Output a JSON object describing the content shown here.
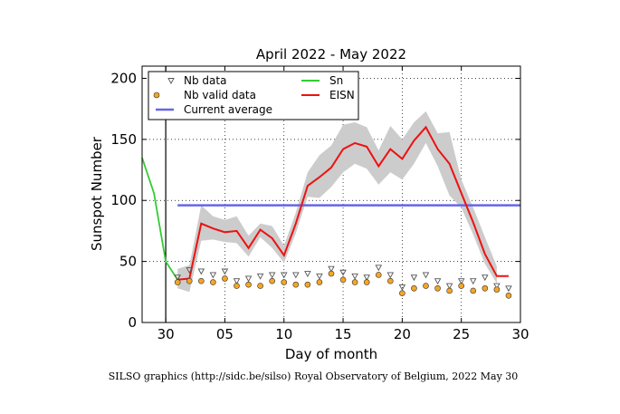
{
  "chart_data": {
    "type": "line",
    "title": "April 2022 - May 2022",
    "xlabel": "Day of month",
    "ylabel": "Sunspot Number",
    "footer": "SILSO graphics (http://sidc.be/silso) Royal Observatory of Belgium, 2022 May 30",
    "xlim": [
      -2,
      30
    ],
    "ylim": [
      0,
      210
    ],
    "x_ticks": [
      {
        "value": 0,
        "label": "30"
      },
      {
        "value": 5,
        "label": "05"
      },
      {
        "value": 10,
        "label": "10"
      },
      {
        "value": 15,
        "label": "15"
      },
      {
        "value": 20,
        "label": "20"
      },
      {
        "value": 25,
        "label": "25"
      },
      {
        "value": 30,
        "label": "30"
      }
    ],
    "y_ticks": [
      0,
      50,
      100,
      150,
      200
    ],
    "grid": true,
    "vertical_marker_x": 0,
    "legend": {
      "placement": "top-left",
      "entries": [
        {
          "label": "Nb data",
          "kind": "triangle",
          "color": "#555555"
        },
        {
          "label": "Nb valid data",
          "kind": "dot",
          "color": "#f5a623"
        },
        {
          "label": "Current average",
          "kind": "line",
          "color": "#6666e6"
        },
        {
          "label": "Sn",
          "kind": "line",
          "color": "#33cc33"
        },
        {
          "label": "EISN",
          "kind": "line",
          "color": "#ee1111"
        }
      ]
    },
    "colors": {
      "sn": "#33cc33",
      "eisn": "#ee1111",
      "band": "#cccccc",
      "average": "#6666e6",
      "dot": "#f5a623",
      "triangle": "#555555",
      "grid": "#000000"
    },
    "series": [
      {
        "name": "Sn",
        "x": [
          -2,
          -1,
          0,
          1
        ],
        "values": [
          135,
          106,
          50,
          35
        ]
      },
      {
        "name": "EISN",
        "x": [
          1,
          2,
          3,
          4,
          5,
          6,
          7,
          8,
          9,
          10,
          11,
          12,
          13,
          14,
          15,
          16,
          17,
          18,
          19,
          20,
          21,
          22,
          23,
          24,
          25,
          26,
          27,
          28,
          29
        ],
        "values": [
          35,
          36,
          81,
          77,
          74,
          75,
          61,
          76,
          69,
          55,
          81,
          112,
          119,
          127,
          142,
          147,
          144,
          128,
          142,
          134,
          149,
          160,
          142,
          130,
          106,
          82,
          56,
          38,
          38
        ]
      },
      {
        "name": "EISN upper",
        "x": [
          1,
          2,
          3,
          4,
          5,
          6,
          7,
          8,
          9,
          10,
          11,
          12,
          13,
          14,
          15,
          16,
          17,
          18,
          19,
          20,
          21,
          22,
          23,
          24,
          25,
          26,
          27,
          28
        ],
        "values": [
          44,
          47,
          96,
          87,
          84,
          87,
          71,
          81,
          79,
          63,
          90,
          123,
          137,
          145,
          162,
          164,
          160,
          141,
          161,
          150,
          164,
          173,
          155,
          156,
          117,
          94,
          70,
          46
        ]
      },
      {
        "name": "EISN lower",
        "x": [
          1,
          2,
          3,
          4,
          5,
          6,
          7,
          8,
          9,
          10,
          11,
          12,
          13,
          14,
          15,
          16,
          17,
          18,
          19,
          20,
          21,
          22,
          23,
          24,
          25,
          26,
          27,
          28
        ],
        "values": [
          28,
          25,
          67,
          68,
          66,
          65,
          54,
          70,
          61,
          49,
          73,
          103,
          102,
          111,
          123,
          130,
          126,
          113,
          123,
          117,
          130,
          147,
          128,
          104,
          94,
          72,
          48,
          32
        ]
      },
      {
        "name": "Current average",
        "x": [
          1,
          30
        ],
        "values": [
          96,
          96
        ]
      },
      {
        "name": "Nb data",
        "x": [
          1,
          2,
          3,
          4,
          5,
          6,
          7,
          8,
          9,
          10,
          11,
          12,
          13,
          14,
          15,
          16,
          17,
          18,
          19,
          20,
          21,
          22,
          23,
          24,
          25,
          26,
          27,
          28,
          29
        ],
        "values": [
          37,
          43,
          42,
          39,
          42,
          34,
          36,
          38,
          39,
          39,
          39,
          40,
          38,
          44,
          41,
          38,
          37,
          45,
          39,
          29,
          37,
          39,
          34,
          30,
          34,
          34,
          37,
          30,
          28
        ]
      },
      {
        "name": "Nb valid data",
        "x": [
          1,
          2,
          3,
          4,
          5,
          6,
          7,
          8,
          9,
          10,
          11,
          12,
          13,
          14,
          15,
          16,
          17,
          18,
          19,
          20,
          21,
          22,
          23,
          24,
          25,
          26,
          27,
          28,
          29
        ],
        "values": [
          33,
          34,
          34,
          33,
          36,
          30,
          31,
          30,
          34,
          33,
          31,
          31,
          33,
          40,
          35,
          33,
          33,
          39,
          34,
          24,
          28,
          30,
          28,
          26,
          30,
          26,
          28,
          27,
          22
        ]
      }
    ]
  }
}
